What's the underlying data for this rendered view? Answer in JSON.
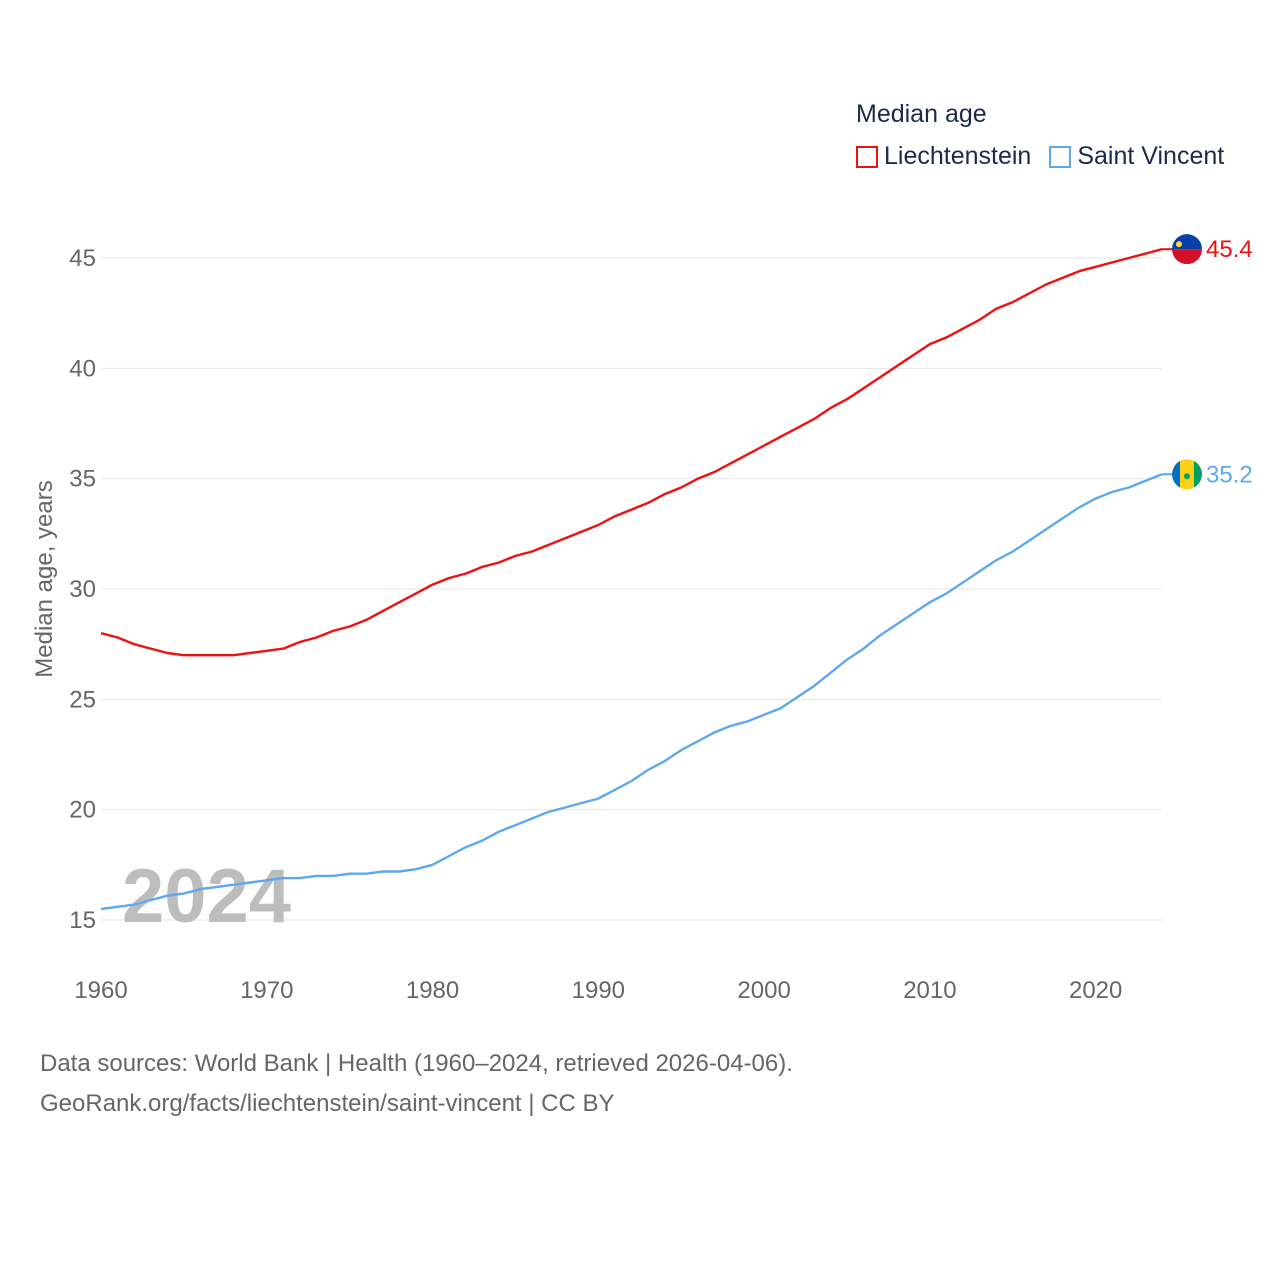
{
  "chart_data": {
    "type": "line",
    "title": "",
    "legend_title": "Median age",
    "legend_placement": "top-right",
    "ylabel": "Median age, years",
    "xlabel": "",
    "xlim": [
      1960,
      2024
    ],
    "ylim": [
      13,
      47
    ],
    "yticks": [
      15,
      20,
      25,
      30,
      35,
      40,
      45
    ],
    "xticks": [
      1960,
      1970,
      1980,
      1990,
      2000,
      2010,
      2020
    ],
    "grid": true,
    "year_watermark": "2024",
    "x": [
      1960,
      1961,
      1962,
      1963,
      1964,
      1965,
      1966,
      1967,
      1968,
      1969,
      1970,
      1971,
      1972,
      1973,
      1974,
      1975,
      1976,
      1977,
      1978,
      1979,
      1980,
      1981,
      1982,
      1983,
      1984,
      1985,
      1986,
      1987,
      1988,
      1989,
      1990,
      1991,
      1992,
      1993,
      1994,
      1995,
      1996,
      1997,
      1998,
      1999,
      2000,
      2001,
      2002,
      2003,
      2004,
      2005,
      2006,
      2007,
      2008,
      2009,
      2010,
      2011,
      2012,
      2013,
      2014,
      2015,
      2016,
      2017,
      2018,
      2019,
      2020,
      2021,
      2022,
      2023,
      2024
    ],
    "series": [
      {
        "name": "Liechtenstein",
        "color": "#ee1111",
        "end_label": "45.4",
        "values": [
          28.0,
          27.8,
          27.5,
          27.3,
          27.1,
          27.0,
          27.0,
          27.0,
          27.0,
          27.1,
          27.2,
          27.3,
          27.6,
          27.8,
          28.1,
          28.3,
          28.6,
          29.0,
          29.4,
          29.8,
          30.2,
          30.5,
          30.7,
          31.0,
          31.2,
          31.5,
          31.7,
          32.0,
          32.3,
          32.6,
          32.9,
          33.3,
          33.6,
          33.9,
          34.3,
          34.6,
          35.0,
          35.3,
          35.7,
          36.1,
          36.5,
          36.9,
          37.3,
          37.7,
          38.2,
          38.6,
          39.1,
          39.6,
          40.1,
          40.6,
          41.1,
          41.4,
          41.8,
          42.2,
          42.7,
          43.0,
          43.4,
          43.8,
          44.1,
          44.4,
          44.6,
          44.8,
          45.0,
          45.2,
          45.4
        ]
      },
      {
        "name": "Saint Vincent",
        "color": "#5ea8ee",
        "end_label": "35.2",
        "values": [
          15.5,
          15.6,
          15.7,
          15.9,
          16.1,
          16.2,
          16.4,
          16.5,
          16.6,
          16.7,
          16.8,
          16.9,
          16.9,
          17.0,
          17.0,
          17.1,
          17.1,
          17.2,
          17.2,
          17.3,
          17.5,
          17.9,
          18.3,
          18.6,
          19.0,
          19.3,
          19.6,
          19.9,
          20.1,
          20.3,
          20.5,
          20.9,
          21.3,
          21.8,
          22.2,
          22.7,
          23.1,
          23.5,
          23.8,
          24.0,
          24.3,
          24.6,
          25.1,
          25.6,
          26.2,
          26.8,
          27.3,
          27.9,
          28.4,
          28.9,
          29.4,
          29.8,
          30.3,
          30.8,
          31.3,
          31.7,
          32.2,
          32.7,
          33.2,
          33.7,
          34.1,
          34.4,
          34.6,
          34.9,
          35.2
        ]
      }
    ]
  },
  "footer": {
    "line1": "Data sources: World Bank | Health (1960–2024, retrieved 2026-04-06).",
    "line2": "GeoRank.org/facts/liechtenstein/saint-vincent | CC BY"
  }
}
